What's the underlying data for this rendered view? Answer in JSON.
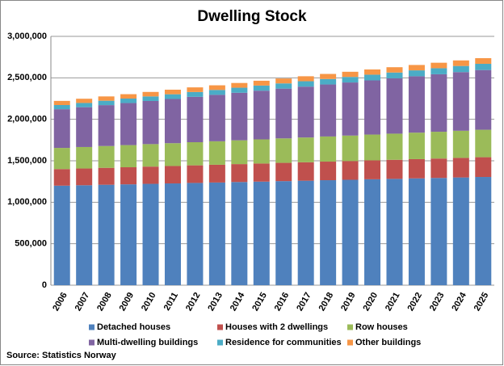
{
  "chart_data": {
    "type": "stacked-bar",
    "title": "Dwelling Stock",
    "source": "Source: Statistics  Norway",
    "categories": [
      "2006",
      "2007",
      "2008",
      "2009",
      "2010",
      "2011",
      "2012",
      "2013",
      "2014",
      "2015",
      "2016",
      "2017",
      "2018",
      "2019",
      "2020",
      "2021",
      "2022",
      "2023",
      "2024",
      "2025"
    ],
    "series": [
      {
        "name": "Detached houses",
        "color": "#4f81bd",
        "values": [
          1200000,
          1205000,
          1211000,
          1216000,
          1222000,
          1227000,
          1233000,
          1238000,
          1244000,
          1249000,
          1255000,
          1260000,
          1266000,
          1271000,
          1277000,
          1282000,
          1288000,
          1293000,
          1299000,
          1305000
        ]
      },
      {
        "name": "Houses with 2 dwellings",
        "color": "#c0504d",
        "values": [
          200000,
          202000,
          204000,
          206000,
          208000,
          210000,
          212000,
          214000,
          216000,
          218000,
          220000,
          222000,
          224000,
          226000,
          228000,
          230000,
          232000,
          234000,
          236000,
          238000
        ]
      },
      {
        "name": "Row houses",
        "color": "#9bbb59",
        "values": [
          255000,
          259000,
          263000,
          267000,
          271000,
          275000,
          279000,
          283000,
          287000,
          291000,
          295000,
          299000,
          303000,
          307000,
          311000,
          315000,
          319000,
          323000,
          327000,
          331000
        ]
      },
      {
        "name": "Multi-dwelling buildings",
        "color": "#8064a2",
        "values": [
          467000,
          480000,
          493000,
          507000,
          520000,
          533000,
          547000,
          560000,
          573000,
          587000,
          600000,
          613000,
          627000,
          640000,
          653000,
          667000,
          680000,
          693000,
          707000,
          720000
        ]
      },
      {
        "name": "Residence for communities",
        "color": "#4bacc6",
        "values": [
          50000,
          51000,
          53000,
          54000,
          55000,
          57000,
          58000,
          59000,
          61000,
          62000,
          63000,
          65000,
          66000,
          67000,
          69000,
          70000,
          71000,
          73000,
          74000,
          75000
        ]
      },
      {
        "name": "Other buildings",
        "color": "#f79646",
        "values": [
          50000,
          51000,
          52000,
          53000,
          54000,
          55000,
          56000,
          56000,
          57000,
          58000,
          59000,
          60000,
          61000,
          62000,
          63000,
          64000,
          65000,
          66000,
          67000,
          68000
        ]
      }
    ],
    "ylim": [
      0,
      3000000
    ],
    "yticks": [
      0,
      {
        "value": 500000,
        "label": "500,000"
      },
      {
        "value": 1000000,
        "label": "1,000,000"
      },
      {
        "value": 1500000,
        "label": "1,500,000"
      },
      {
        "value": 2000000,
        "label": "2,000,000"
      },
      {
        "value": 2500000,
        "label": "2,500,000"
      },
      {
        "value": 3000000,
        "label": "3,000,000"
      }
    ],
    "grid": true
  }
}
